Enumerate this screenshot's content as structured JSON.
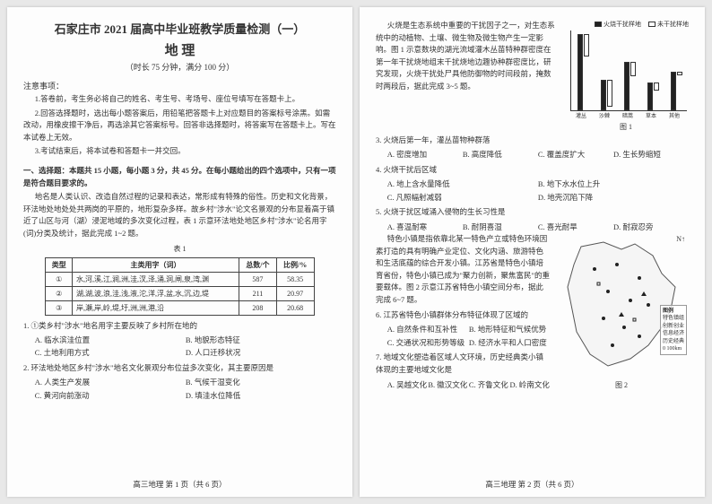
{
  "header": {
    "main_title": "石家庄市 2021 届高中毕业班教学质量检测（一）",
    "subject": "地 理",
    "timing": "（时长 75 分钟，满分 100 分）"
  },
  "notice": {
    "head": "注意事项：",
    "items": [
      "1.答卷前，考生务必将自己的姓名、考生号、考场号、座位号填写在答题卡上。",
      "2.回答选择题时，选出每小题答案后，用铅笔把答题卡上对应题目的答案标号涂黑。如需改动，用橡皮擦干净后，再选涂其它答案标号。回答非选择题时，将答案写在答题卡上。写在本试卷上无效。",
      "3.考试结束后，将本试卷和答题卡一并交回。"
    ]
  },
  "section1_head": "一、选择题：本题共 15 小题，每小题 3 分，共 45 分。在每小题给出的四个选项中，只有一项是符合题目要求的。",
  "passage1": "地名是人类认识、改造自然过程的记录和表达，常形成有特殊的俗性。历史和文化背景，环法地处地处处共两岗的平原的，地形复杂多样。故乡村\"涉水\"论文名景观的分布显着高于镇近了山区与河（湖）浸泥地域的多次变化过程，表 1 示意环法地处地区乡村\"涉水\"论名用字(词)分类及统计，据此完成 1~2 题。",
  "table1": {
    "caption": "表 1",
    "headers": [
      "类型",
      "主类用字（词）",
      "总数/个",
      "比例/%"
    ],
    "rows": [
      [
        "①",
        "水,河,溪,江,涧,洲,洼,汊,泽,涌,洞,闸,泉,湾,渊",
        "587",
        "58.35"
      ],
      [
        "②",
        "湖,湖,波,浪,洼,浅,液,沱,洋,浮,盆,水,沉,边,堤",
        "211",
        "20.97"
      ],
      [
        "③",
        "岸,瀬,岸,岭,堤,圩,洲,洲,港,沿",
        "208",
        "20.68"
      ]
    ]
  },
  "q1": {
    "stem": "1. ①类乡村\"涉水\"地名用字主要反映了乡村所在地的",
    "opts": [
      "A. 临水滨洼位置",
      "B. 地貌形态特征",
      "C. 土地利用方式",
      "D. 人口迁移状况"
    ]
  },
  "q2": {
    "stem": "2. 环法地处地区乡村\"涉水\"地名文化景观分布位益多次变化，其主要原因是",
    "opts": [
      "A. 人类生产发展",
      "B. 气候干湿变化",
      "C. 黄河向前涨动",
      "D. 填洼水位降低"
    ]
  },
  "footer1": "高三地理  第 1 页（共 6 页）",
  "passage2": "火烧是生态系统中重要的干扰因子之一，对生态系统中的动植物、土壤、微生物及微生物产生一定影响。图 1 示意数块的湖光流域灌木丛苗特种群密度在第一年干扰烧地组末千扰烧地边趣协种群密度比，研究发现，火烧干扰处尸具他防御物的时间段前，掩数时两段后，据此完成 3~5 题。",
  "chart1": {
    "legend": [
      {
        "label": "火烧干扰样地",
        "color": "#222222"
      },
      {
        "label": "未干扰样地",
        "color": "#ffffff"
      }
    ],
    "categories": [
      "灌丛",
      "沙棘",
      "暗蒿",
      "草本",
      "其他"
    ],
    "series_fire": [
      95,
      38,
      60,
      35,
      48
    ],
    "series_nofire": [
      28,
      33,
      18,
      10,
      5
    ],
    "ymax": 100,
    "caption": "图 1",
    "bar_fill_fire": "#222222",
    "bar_fill_nofire": "#ffffff",
    "bar_border": "#333333"
  },
  "q3": {
    "stem": "3. 火烧后第一年，灌丛苗物种群落",
    "opts": [
      "A. 密度增加",
      "B. 高度降低",
      "C. 覆盖度扩大",
      "D. 生长势缩短"
    ]
  },
  "q4": {
    "stem": "4. 火烧干扰后区域",
    "opts": [
      "A. 地上含水量降低",
      "B. 地下水水位上升",
      "C. 凡照幅射减弱",
      "D. 地壳沉陷下降"
    ]
  },
  "q5": {
    "stem": "5. 火烧于扰区域涌入侵物的生长习性是",
    "opts": [
      "A. 喜温耐寒",
      "B. 耐阴喜湿",
      "C. 喜光耐旱",
      "D. 耐寂忍旁"
    ]
  },
  "passage3": "特色小镇是指依靠北某一特色产立或特色环境因素打造的具有明确产业定位、文化内涵、旅游特色和生活底蕴的综合开发小镇。江苏省是特色小镇培育省份，特色小镇已成为\"聚力创新，聚焦富民\"的重要载体。图 2 示意江苏省特色小镇空间分布，据此完成 6~7 题。",
  "map": {
    "caption": "图 2",
    "compass": "N↑",
    "legend_items": [
      "特色镇组",
      "创新创业",
      "信息经济",
      "历史经典"
    ],
    "scale": "0  100km",
    "outline_color": "#555555",
    "land_fill": "#f5f5f5",
    "dot_color": "#222222"
  },
  "q6": {
    "stem": "6. 江苏省特色小镇群体分布特征体现了区域的",
    "opts": [
      "A. 自然条件和互补性",
      "B. 地形特征和气候优势",
      "C. 交通状况和形势等级",
      "D. 经济水平和人口密度"
    ]
  },
  "q7": {
    "stem": "7. 地域文化塑造着区域人文环境，历史经典类小镇体现的主要地域文化是",
    "opts": [
      "A. 吴越文化",
      "B. 徽汉文化",
      "C. 齐鲁文化",
      "D. 岭南文化"
    ]
  },
  "footer2": "高三地理  第 2 页（共 6 页）"
}
